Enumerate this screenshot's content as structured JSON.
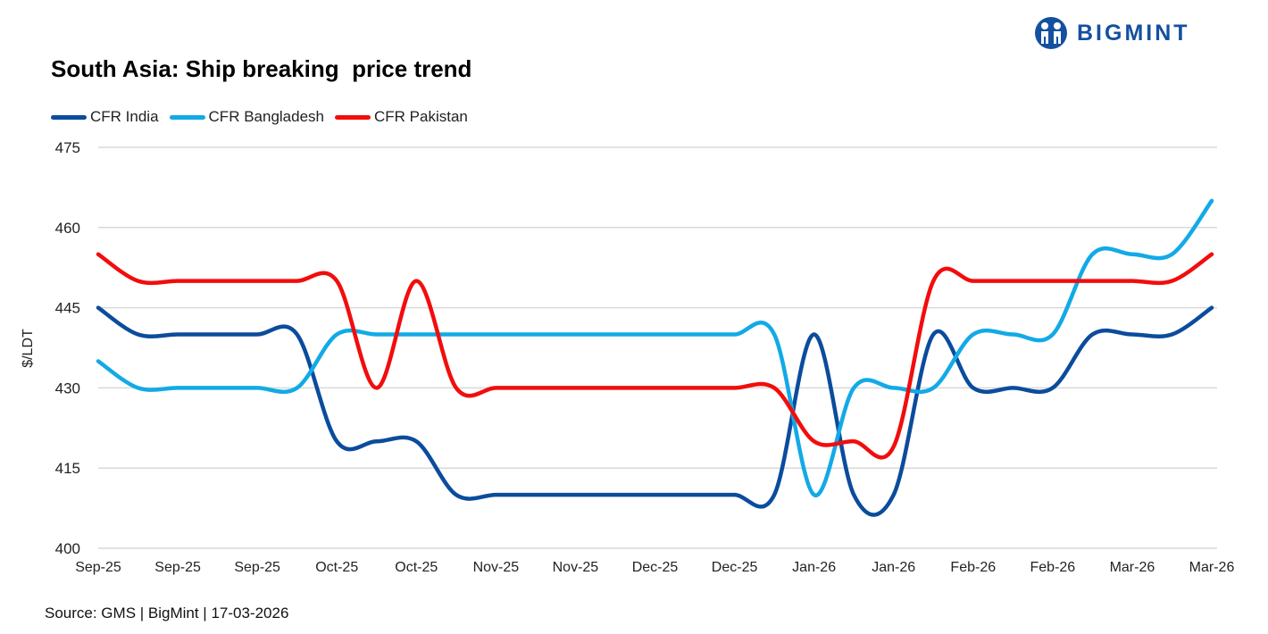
{
  "header": {
    "title": "South Asia: Ship breaking  price trend",
    "logo_text": "BIGMINT"
  },
  "footer": {
    "source": "Source: GMS | BigMint  | 17-03-2026"
  },
  "chart_data": {
    "type": "line",
    "title": "South Asia: Ship breaking  price trend",
    "ylabel": "$/LDT",
    "xlabel": "",
    "ylim": [
      400,
      475
    ],
    "yticks": [
      400,
      415,
      430,
      445,
      460,
      475
    ],
    "grid": true,
    "legend": "top-left",
    "smooth": true,
    "x_tick_labels": [
      "Sep-25",
      "Sep-25",
      "Sep-25",
      "Oct-25",
      "Oct-25",
      "Nov-25",
      "Nov-25",
      "Dec-25",
      "Dec-25",
      "Jan-26",
      "Jan-26",
      "Feb-26",
      "Feb-26",
      "Mar-26",
      "Mar-26"
    ],
    "series": [
      {
        "name": "CFR India",
        "color": "#0b4c9c",
        "values": [
          445,
          440,
          440,
          440,
          440,
          440,
          420,
          420,
          420,
          410,
          410,
          410,
          410,
          410,
          410,
          410,
          410,
          410,
          440,
          410,
          410,
          440,
          430,
          430,
          430,
          440,
          440,
          440,
          445
        ]
      },
      {
        "name": "CFR Bangladesh",
        "color": "#12aae6",
        "values": [
          435,
          430,
          430,
          430,
          430,
          430,
          440,
          440,
          440,
          440,
          440,
          440,
          440,
          440,
          440,
          440,
          440,
          440,
          410,
          430,
          430,
          430,
          440,
          440,
          440,
          455,
          455,
          455,
          465
        ]
      },
      {
        "name": "CFR Pakistan",
        "color": "#f20d0d",
        "values": [
          455,
          450,
          450,
          450,
          450,
          450,
          450,
          430,
          450,
          430,
          430,
          430,
          430,
          430,
          430,
          430,
          430,
          430,
          420,
          420,
          419,
          450,
          450,
          450,
          450,
          450,
          450,
          450,
          455
        ]
      }
    ]
  }
}
